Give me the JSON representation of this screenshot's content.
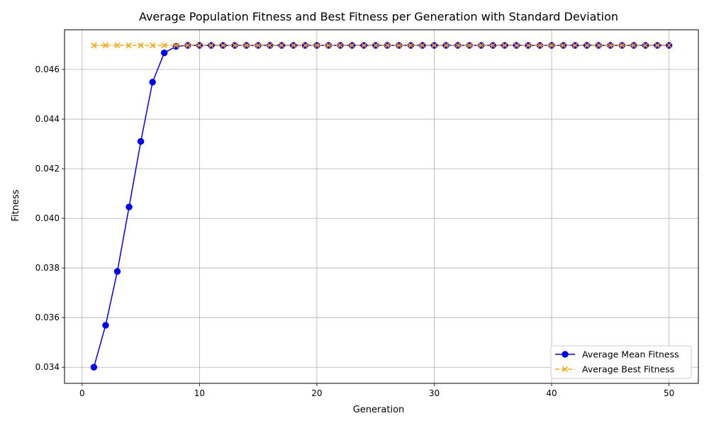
{
  "chart_data": {
    "type": "line",
    "title": "Average Population Fitness and Best Fitness per Generation with Standard Deviation",
    "xlabel": "Generation",
    "ylabel": "Fitness",
    "xlim": [
      -1.5,
      52.5
    ],
    "ylim": [
      0.03335,
      0.0476
    ],
    "xticks": [
      0,
      10,
      20,
      30,
      40,
      50
    ],
    "yticks": [
      0.034,
      0.036,
      0.038,
      0.04,
      0.042,
      0.044,
      0.046
    ],
    "xtick_labels": [
      "0",
      "10",
      "20",
      "30",
      "40",
      "50"
    ],
    "ytick_labels": [
      "0.034",
      "0.036",
      "0.038",
      "0.040",
      "0.042",
      "0.044",
      "0.046"
    ],
    "grid": true,
    "legend_position": "lower-right",
    "x": [
      1,
      2,
      3,
      4,
      5,
      6,
      7,
      8,
      9,
      10,
      11,
      12,
      13,
      14,
      15,
      16,
      17,
      18,
      19,
      20,
      21,
      22,
      23,
      24,
      25,
      26,
      27,
      28,
      29,
      30,
      31,
      32,
      33,
      34,
      35,
      36,
      37,
      38,
      39,
      40,
      41,
      42,
      43,
      44,
      45,
      46,
      47,
      48,
      49,
      50
    ],
    "series": [
      {
        "name": "Average Mean Fitness",
        "color": "#0000ff",
        "marker": "circle",
        "linestyle": "solid",
        "values": [
          0.034,
          0.03569,
          0.03786,
          0.04046,
          0.0431,
          0.04549,
          0.04667,
          0.04693,
          0.04697,
          0.04697,
          0.04697,
          0.04697,
          0.04697,
          0.04697,
          0.04697,
          0.04697,
          0.04697,
          0.04697,
          0.04697,
          0.04697,
          0.04697,
          0.04697,
          0.04697,
          0.04697,
          0.04697,
          0.04697,
          0.04697,
          0.04697,
          0.04697,
          0.04697,
          0.04697,
          0.04697,
          0.04697,
          0.04697,
          0.04697,
          0.04697,
          0.04697,
          0.04697,
          0.04697,
          0.04697,
          0.04697,
          0.04697,
          0.04697,
          0.04697,
          0.04697,
          0.04697,
          0.04697,
          0.04697,
          0.04697,
          0.04697
        ]
      },
      {
        "name": "Average Best Fitness",
        "color": "#ffa500",
        "marker": "x",
        "linestyle": "dashed",
        "values": [
          0.04697,
          0.04697,
          0.04697,
          0.04697,
          0.04697,
          0.04697,
          0.04697,
          0.04697,
          0.04697,
          0.04697,
          0.04697,
          0.04697,
          0.04697,
          0.04697,
          0.04697,
          0.04697,
          0.04697,
          0.04697,
          0.04697,
          0.04697,
          0.04697,
          0.04697,
          0.04697,
          0.04697,
          0.04697,
          0.04697,
          0.04697,
          0.04697,
          0.04697,
          0.04697,
          0.04697,
          0.04697,
          0.04697,
          0.04697,
          0.04697,
          0.04697,
          0.04697,
          0.04697,
          0.04697,
          0.04697,
          0.04697,
          0.04697,
          0.04697,
          0.04697,
          0.04697,
          0.04697,
          0.04697,
          0.04697,
          0.04697,
          0.04697
        ]
      }
    ]
  }
}
